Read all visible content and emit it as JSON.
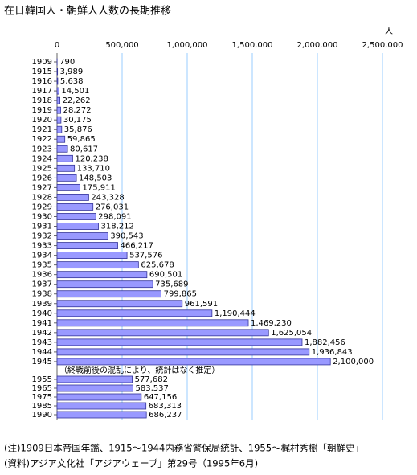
{
  "chart_data": {
    "type": "hbar",
    "title": "在日韓国人・朝鮮人人数の長期推移",
    "unit": "人",
    "categories": [
      "1909",
      "1915",
      "1916",
      "1917",
      "1918",
      "1919",
      "1920",
      "1921",
      "1922",
      "1923",
      "1924",
      "1925",
      "1926",
      "1927",
      "1928",
      "1929",
      "1930",
      "1931",
      "1932",
      "1933",
      "1934",
      "1935",
      "1936",
      "1937",
      "1938",
      "1939",
      "1940",
      "1941",
      "1942",
      "1943",
      "1944",
      "1945",
      "1955",
      "1965",
      "1975",
      "1985",
      "1990"
    ],
    "values": [
      790,
      3989,
      5638,
      14501,
      22262,
      28272,
      30175,
      35876,
      59865,
      80617,
      120238,
      133710,
      148503,
      175911,
      243328,
      276031,
      298091,
      318212,
      390543,
      466217,
      537576,
      625678,
      690501,
      735689,
      799865,
      961591,
      1190444,
      1469230,
      1625054,
      1882456,
      1936843,
      2100000,
      577682,
      583537,
      647156,
      683313,
      686237
    ],
    "value_labels": [
      "790",
      "3,989",
      "5,638",
      "14,501",
      "22,262",
      "28,272",
      "30,175",
      "35,876",
      "59,865",
      "80,617",
      "120,238",
      "133,710",
      "148,503",
      "175,911",
      "243,328",
      "276,031",
      "298,091",
      "318,212",
      "390,543",
      "466,217",
      "537,576",
      "625,678",
      "690,501",
      "735,689",
      "799,865",
      "961,591",
      "1,190,444",
      "1,469,230",
      "1,625,054",
      "1,882,456",
      "1,936,843",
      "2,100,000",
      "577,682",
      "583,537",
      "647,156",
      "683,313",
      "686,237"
    ],
    "annotation": "（終戦前後の混乱により、統計はなく推定）",
    "color": "#9999ff",
    "edge_color": "#333399",
    "grid": true,
    "xlim": [
      0,
      2500000
    ],
    "xticks": [
      0,
      {
        "value": 500000,
        "label": "500,000"
      },
      {
        "value": 1000000,
        "label": "1,000,000"
      },
      {
        "value": 1500000,
        "label": "1,500,000"
      },
      {
        "value": 2000000,
        "label": "2,000,000"
      },
      {
        "value": 2500000,
        "label": "2,500,000"
      }
    ],
    "notes": [
      "(注)1909日本帝国年鑑、1915～1944内務省警保局統計、1955～梶村秀樹「朝鮮史」",
      "(資料)アジア文化社「アジアウェーブ」第29号（1995年6月)"
    ]
  }
}
